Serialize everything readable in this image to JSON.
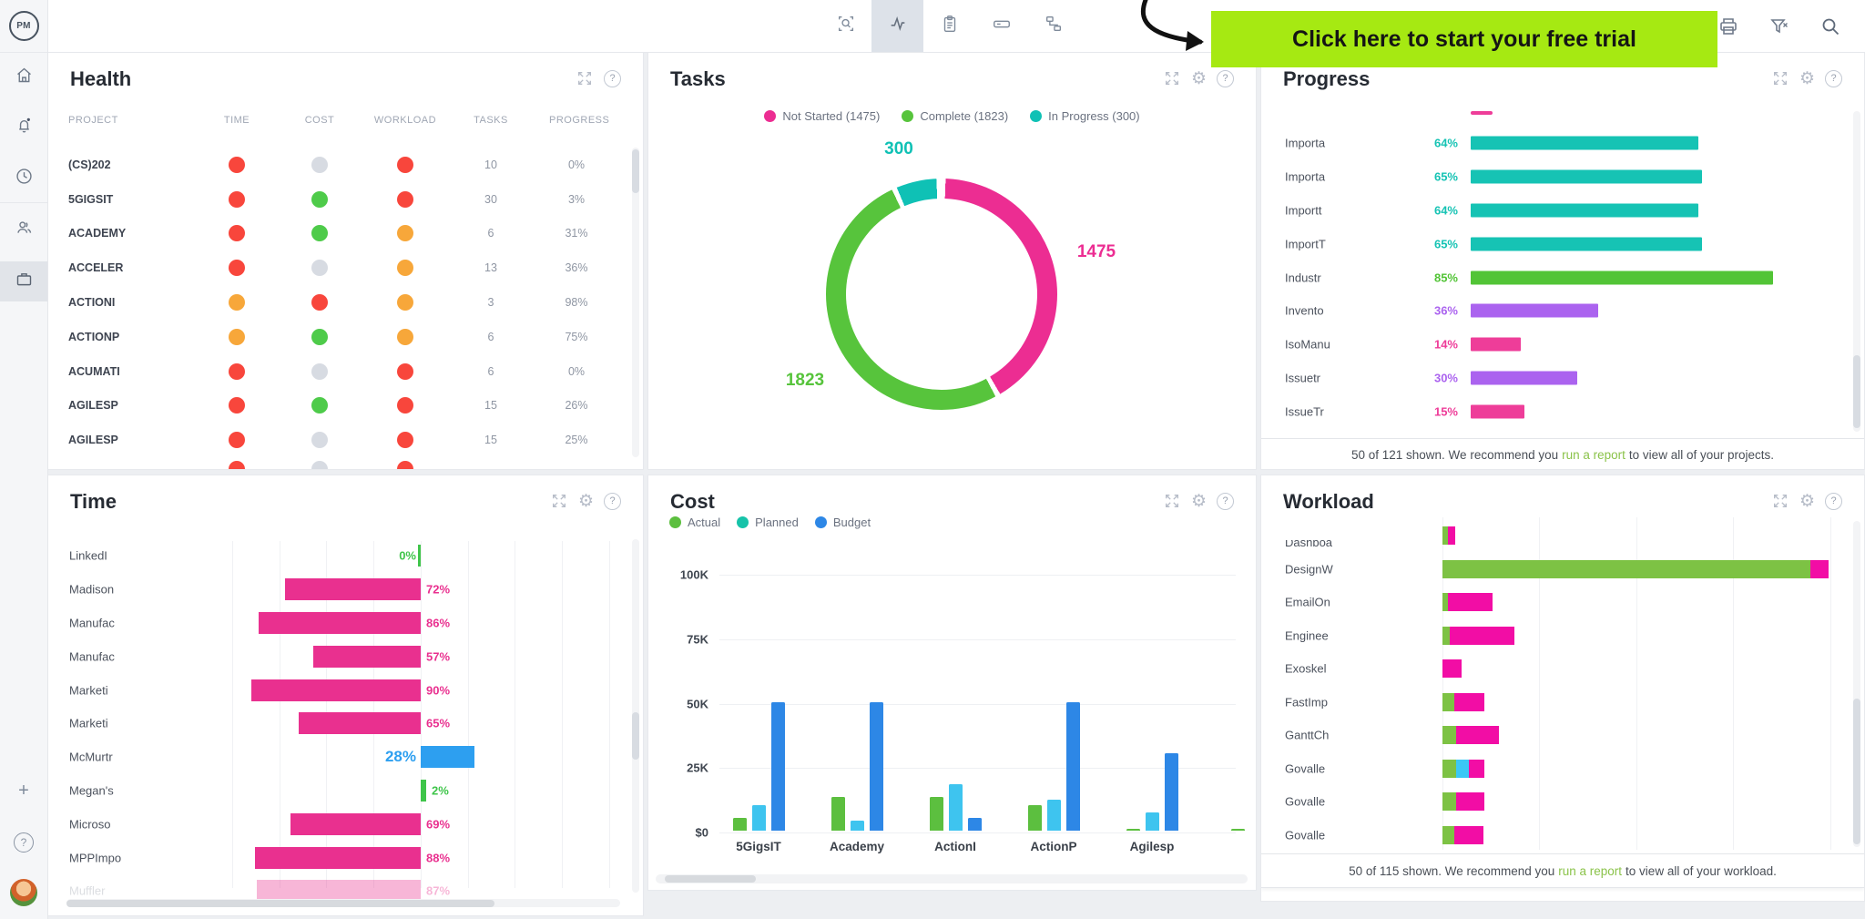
{
  "colors": {
    "pink": "#ec2d92",
    "green": "#57c43c",
    "teal": "#0fc1b5",
    "health_red": "#f8463c",
    "health_green": "#4ecb4a",
    "health_orange": "#f7a73a",
    "health_gray": "#d7dbe2",
    "progress_teal": "#16c3b4",
    "progress_green": "#52c436",
    "progress_purple": "#ab63ef",
    "progress_pink": "#ee3d99",
    "time_pink": "#e9308f",
    "time_blue": "#2d9ff0",
    "time_green": "#3fc54a",
    "cost_actual": "#5cbf3f",
    "cost_planned_bar": "#3ec4ef",
    "cost_planned_dot": "#16c3a9",
    "cost_budget": "#2d87e6",
    "workload_green": "#7dc244",
    "workload_pink": "#f20da5",
    "workload_cyan": "#3bc8f5",
    "banner_bg": "#a6e912",
    "link_green": "#8bc34a"
  },
  "topbar": {
    "banner": {
      "text": "Click here to start your free trial"
    },
    "tools": [
      "zoom-select",
      "activity",
      "clipboard",
      "text-field",
      "workflow"
    ],
    "right_tools": [
      "print",
      "clear-filter",
      "search"
    ]
  },
  "sidebar": {
    "logo": "PM",
    "items": [
      "home",
      "notifications",
      "recent",
      "team",
      "portfolio",
      "add",
      "help",
      "avatar"
    ]
  },
  "health": {
    "title": "Health",
    "columns": [
      "PROJECT",
      "TIME",
      "COST",
      "WORKLOAD",
      "TASKS",
      "PROGRESS"
    ],
    "rows": [
      {
        "project": "(CS)202",
        "time": "red",
        "cost": "gray",
        "workload": "red",
        "tasks": "10",
        "progress": "0%"
      },
      {
        "project": "5GIGSIT",
        "time": "red",
        "cost": "green",
        "workload": "red",
        "tasks": "30",
        "progress": "3%"
      },
      {
        "project": "ACADEMY",
        "time": "red",
        "cost": "green",
        "workload": "orange",
        "tasks": "6",
        "progress": "31%"
      },
      {
        "project": "ACCELER",
        "time": "red",
        "cost": "gray",
        "workload": "orange",
        "tasks": "13",
        "progress": "36%"
      },
      {
        "project": "ACTIONI",
        "time": "orange",
        "cost": "red",
        "workload": "orange",
        "tasks": "3",
        "progress": "98%"
      },
      {
        "project": "ACTIONP",
        "time": "orange",
        "cost": "green",
        "workload": "orange",
        "tasks": "6",
        "progress": "75%"
      },
      {
        "project": "ACUMATI",
        "time": "red",
        "cost": "gray",
        "workload": "red",
        "tasks": "6",
        "progress": "0%"
      },
      {
        "project": "AGILESP",
        "time": "red",
        "cost": "green",
        "workload": "red",
        "tasks": "15",
        "progress": "26%"
      },
      {
        "project": "AGILESP",
        "time": "red",
        "cost": "gray",
        "workload": "red",
        "tasks": "15",
        "progress": "25%"
      }
    ],
    "partial_row": {
      "time": "red",
      "cost": "gray",
      "workload": "red"
    }
  },
  "tasks": {
    "title": "Tasks",
    "legend": [
      {
        "label": "Not Started (1475)",
        "color_key": "pink"
      },
      {
        "label": "Complete (1823)",
        "color_key": "green"
      },
      {
        "label": "In Progress (300)",
        "color_key": "teal"
      }
    ],
    "chart_data": {
      "type": "pie",
      "categories": [
        "Not Started",
        "Complete",
        "In Progress"
      ],
      "values": [
        1475,
        1823,
        300
      ],
      "labels": {
        "not_started": "1475",
        "complete": "1823",
        "in_progress": "300"
      }
    }
  },
  "progress": {
    "title": "Progress",
    "chart_data": {
      "type": "bar",
      "rows": [
        {
          "label": "Importa",
          "pct": 64,
          "color": "teal"
        },
        {
          "label": "Importa",
          "pct": 65,
          "color": "teal"
        },
        {
          "label": "Importt",
          "pct": 64,
          "color": "teal"
        },
        {
          "label": "ImportT",
          "pct": 65,
          "color": "teal"
        },
        {
          "label": "Industr",
          "pct": 85,
          "color": "green"
        },
        {
          "label": "Invento",
          "pct": 36,
          "color": "purple"
        },
        {
          "label": "IsoManu",
          "pct": 14,
          "color": "pink"
        },
        {
          "label": "Issuetr",
          "pct": 30,
          "color": "purple"
        },
        {
          "label": "IssueTr",
          "pct": 15,
          "color": "pink"
        }
      ]
    },
    "footer": {
      "before": "50 of 121 shown. We recommend you",
      "link": "run a report",
      "after": "to view all of your projects."
    }
  },
  "time": {
    "title": "Time",
    "chart_data": {
      "type": "bar",
      "rows": [
        {
          "label": "LinkedI",
          "value": "0%",
          "pct": 0,
          "color": "green",
          "dir": "left",
          "len": 3,
          "label_side": "left"
        },
        {
          "label": "Madison",
          "value": "72%",
          "pct": 72,
          "color": "pink",
          "dir": "left",
          "len": 149,
          "label_side": "right"
        },
        {
          "label": "Manufac",
          "value": "86%",
          "pct": 86,
          "color": "pink",
          "dir": "left",
          "len": 178,
          "label_side": "right"
        },
        {
          "label": "Manufac",
          "value": "57%",
          "pct": 57,
          "color": "pink",
          "dir": "left",
          "len": 118,
          "label_side": "right"
        },
        {
          "label": "Marketi",
          "value": "90%",
          "pct": 90,
          "color": "pink",
          "dir": "left",
          "len": 186,
          "label_side": "right"
        },
        {
          "label": "Marketi",
          "value": "65%",
          "pct": 65,
          "color": "pink",
          "dir": "left",
          "len": 134,
          "label_side": "right"
        },
        {
          "label": "McMurtr",
          "value": "28%",
          "pct": 28,
          "color": "blue",
          "dir": "right",
          "len": 59,
          "label_side": "left",
          "big": true
        },
        {
          "label": "Megan's",
          "value": "2%",
          "pct": 2,
          "color": "green",
          "dir": "right",
          "len": 6,
          "label_side": "after"
        },
        {
          "label": "Microso",
          "value": "69%",
          "pct": 69,
          "color": "pink",
          "dir": "left",
          "len": 143,
          "label_side": "right"
        },
        {
          "label": "MPPImpo",
          "value": "88%",
          "pct": 88,
          "color": "pink",
          "dir": "left",
          "len": 182,
          "label_side": "right"
        },
        {
          "label": "Muffler",
          "value": "87%",
          "pct": 87,
          "color": "pink",
          "dir": "left",
          "len": 180,
          "label_side": "right",
          "partial": true
        }
      ]
    }
  },
  "cost": {
    "title": "Cost",
    "legend": [
      {
        "label": "Actual",
        "color_key": "cost_actual"
      },
      {
        "label": "Planned",
        "color_key": "cost_planned_dot"
      },
      {
        "label": "Budget",
        "color_key": "cost_budget"
      }
    ],
    "chart_data": {
      "type": "bar",
      "ylabel_ticks": [
        "100K",
        "75K",
        "50K",
        "25K",
        "$0"
      ],
      "ylim": [
        0,
        100
      ],
      "categories": [
        "5GigsIT",
        "Academy",
        "ActionI",
        "ActionP",
        "Agilesp"
      ],
      "series": [
        {
          "name": "Actual",
          "values": [
            5,
            13,
            13,
            10,
            0.6
          ]
        },
        {
          "name": "Planned",
          "values": [
            10,
            4,
            18,
            12,
            7
          ]
        },
        {
          "name": "Budget",
          "values": [
            50,
            50,
            5,
            50,
            30
          ]
        }
      ],
      "partial_next_group": {
        "actual": 0.6
      }
    }
  },
  "workload": {
    "title": "Workload",
    "chart_data": {
      "type": "bar",
      "rows": [
        {
          "label": "Dashboa",
          "clip_label": true,
          "segments": [
            [
              "green",
              6
            ],
            [
              "pink",
              8
            ]
          ]
        },
        {
          "label": "DesignW",
          "segments": [
            [
              "green",
              404
            ],
            [
              "pink",
              20
            ]
          ]
        },
        {
          "label": "EmailOn",
          "segments": [
            [
              "green",
              6
            ],
            [
              "pink",
              49
            ]
          ]
        },
        {
          "label": "Enginee",
          "segments": [
            [
              "green",
              8
            ],
            [
              "pink",
              71
            ]
          ]
        },
        {
          "label": "Exoskel",
          "segments": [
            [
              "pink",
              21
            ]
          ]
        },
        {
          "label": "FastImp",
          "segments": [
            [
              "green",
              13
            ],
            [
              "pink",
              33
            ]
          ]
        },
        {
          "label": "GanttCh",
          "segments": [
            [
              "green",
              15
            ],
            [
              "pink",
              47
            ]
          ]
        },
        {
          "label": "Govalle",
          "segments": [
            [
              "green",
              15
            ],
            [
              "cyan",
              14
            ],
            [
              "pink",
              17
            ]
          ]
        },
        {
          "label": "Govalle",
          "segments": [
            [
              "green",
              15
            ],
            [
              "pink",
              31
            ]
          ]
        },
        {
          "label": "Govalle",
          "segments": [
            [
              "green",
              13
            ],
            [
              "pink",
              32
            ]
          ]
        }
      ]
    },
    "footer": {
      "before": "50 of 115 shown. We recommend you",
      "link": "run a report",
      "after": "to view all of your workload."
    }
  }
}
